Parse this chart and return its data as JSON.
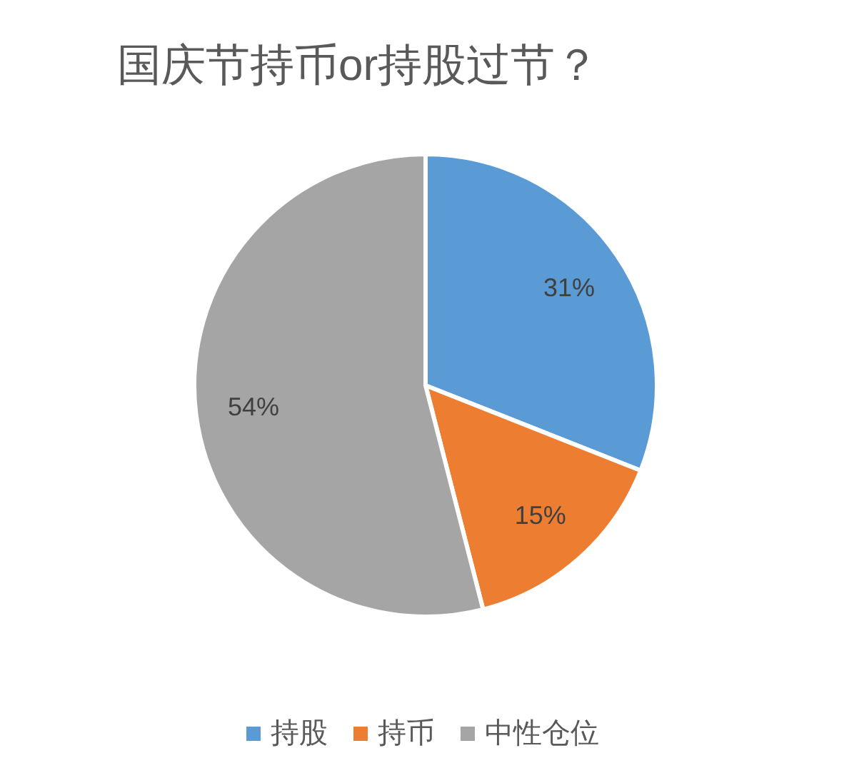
{
  "chart_data": {
    "type": "pie",
    "title": "国庆节持币or持股过节？",
    "categories": [
      "持股",
      "持币",
      "中性仓位"
    ],
    "values": [
      31,
      15,
      54
    ],
    "colors": [
      "#5b9bd5",
      "#ed7d31",
      "#a5a5a5"
    ],
    "value_labels": [
      "31%",
      "15%",
      "54%"
    ],
    "legend": "bottom"
  }
}
